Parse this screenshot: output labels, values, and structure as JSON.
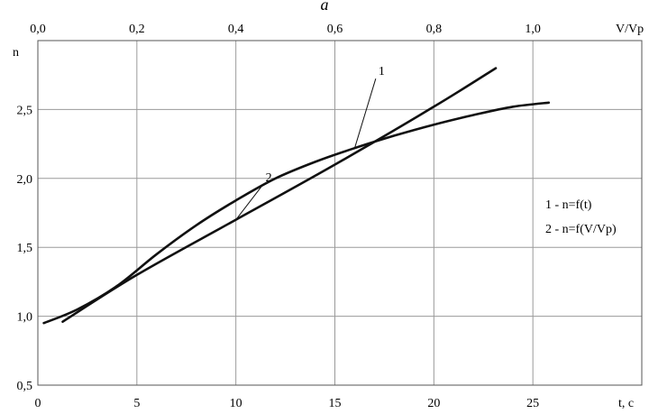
{
  "chart_data": {
    "type": "line",
    "figure_letter": "a",
    "xlabel": "t,  c",
    "ylabel": "n",
    "x_ticks": [
      "0",
      "5",
      "10",
      "15",
      "20",
      "25"
    ],
    "x_tick_values": [
      0,
      5,
      10,
      15,
      20,
      25
    ],
    "xlim": [
      0,
      30.5
    ],
    "top_xlabel": "V/Vp",
    "top_x_ticks": [
      "0,0",
      "0,2",
      "0,4",
      "0,6",
      "0,8",
      "1,0"
    ],
    "top_x_tick_values": [
      0.0,
      0.2,
      0.4,
      0.6,
      0.8,
      1.0
    ],
    "top_xlim": [
      0,
      1.22
    ],
    "y_ticks": [
      "0,5",
      "1,0",
      "1,5",
      "2,0",
      "2,5"
    ],
    "y_tick_values": [
      0.5,
      1.0,
      1.5,
      2.0,
      2.5
    ],
    "ylim": [
      0.5,
      3.0
    ],
    "grid": true,
    "series": [
      {
        "name": "1",
        "axis": "bottom",
        "x": [
          0.3,
          2,
          4,
          6,
          8,
          10,
          12,
          14,
          16,
          18,
          20,
          22,
          24,
          25.8
        ],
        "y": [
          0.95,
          1.05,
          1.22,
          1.45,
          1.66,
          1.84,
          2.0,
          2.12,
          2.22,
          2.31,
          2.39,
          2.46,
          2.52,
          2.55
        ]
      },
      {
        "name": "2",
        "axis": "top",
        "x": [
          0.05,
          0.2,
          0.4,
          0.6,
          0.8,
          0.925
        ],
        "y": [
          0.96,
          1.3,
          1.7,
          2.1,
          2.52,
          2.8
        ]
      }
    ],
    "curve_labels": [
      {
        "text": "1",
        "series": 0,
        "anchor_x": 16.0,
        "label_x": 17.2,
        "label_y": 2.75
      },
      {
        "text": "2",
        "series": 1,
        "anchor_x": 0.4,
        "label_x": 11.5,
        "label_y": 1.98
      }
    ],
    "legend": {
      "placement": "right",
      "entries": [
        "1 - n=f(t)",
        "2 - n=f(V/Vp)"
      ]
    }
  }
}
